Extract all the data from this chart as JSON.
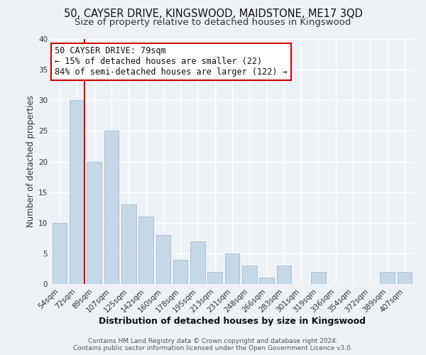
{
  "title1": "50, CAYSER DRIVE, KINGSWOOD, MAIDSTONE, ME17 3QD",
  "title2": "Size of property relative to detached houses in Kingswood",
  "xlabel": "Distribution of detached houses by size in Kingswood",
  "ylabel": "Number of detached properties",
  "categories": [
    "54sqm",
    "72sqm",
    "89sqm",
    "107sqm",
    "125sqm",
    "142sqm",
    "160sqm",
    "178sqm",
    "195sqm",
    "213sqm",
    "231sqm",
    "248sqm",
    "266sqm",
    "283sqm",
    "301sqm",
    "319sqm",
    "336sqm",
    "354sqm",
    "372sqm",
    "389sqm",
    "407sqm"
  ],
  "values": [
    10,
    30,
    20,
    25,
    13,
    11,
    8,
    4,
    7,
    2,
    5,
    3,
    1,
    3,
    0,
    2,
    0,
    0,
    0,
    2,
    2
  ],
  "bar_color": "#c5d8e8",
  "bar_edge_color": "#a0bdd0",
  "reference_line_color": "#cc0000",
  "annotation_line1": "50 CAYSER DRIVE: 79sqm",
  "annotation_line2": "← 15% of detached houses are smaller (22)",
  "annotation_line3": "84% of semi-detached houses are larger (122) →",
  "annotation_box_color": "white",
  "annotation_box_edge_color": "#cc0000",
  "ylim": [
    0,
    40
  ],
  "yticks": [
    0,
    5,
    10,
    15,
    20,
    25,
    30,
    35,
    40
  ],
  "footer1": "Contains HM Land Registry data © Crown copyright and database right 2024.",
  "footer2": "Contains public sector information licensed under the Open Government Licence v3.0.",
  "bg_color": "#eef2f7",
  "grid_color": "white",
  "title1_fontsize": 10.5,
  "title2_fontsize": 9.5,
  "xlabel_fontsize": 9,
  "ylabel_fontsize": 8.5,
  "tick_fontsize": 7.5,
  "annotation_fontsize": 8.5,
  "footer_fontsize": 6.5
}
